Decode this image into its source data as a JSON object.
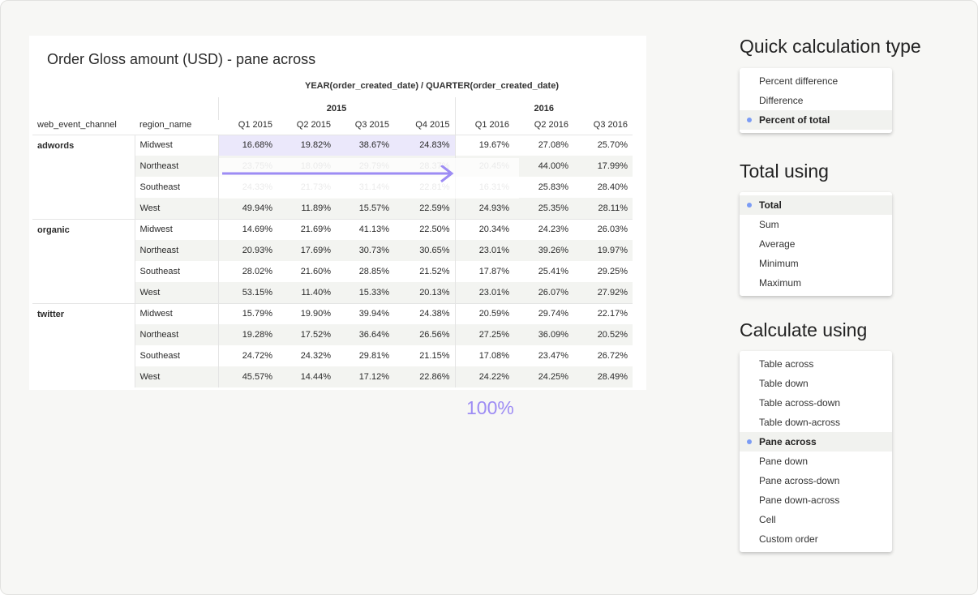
{
  "chart": {
    "title": "Order Gloss amount (USD) - pane across",
    "column_axis": "YEAR(order_created_date) / QUARTER(order_created_date)",
    "years": [
      "2015",
      "2016"
    ],
    "row_headers": [
      "web_event_channel",
      "region_name"
    ],
    "quarters": [
      "Q1 2015",
      "Q2 2015",
      "Q3 2015",
      "Q4 2015",
      "Q1 2016",
      "Q2 2016",
      "Q3 2016"
    ],
    "groups": [
      {
        "channel": "adwords",
        "rows": [
          {
            "region": "Midwest",
            "values": [
              "16.68%",
              "19.82%",
              "38.67%",
              "24.83%",
              "19.67%",
              "27.08%",
              "25.70%"
            ]
          },
          {
            "region": "Northeast",
            "values": [
              "23.75%",
              "18.09%",
              "29.79%",
              "28.37%",
              "20.45%",
              "44.00%",
              "17.99%"
            ]
          },
          {
            "region": "Southeast",
            "values": [
              "24.33%",
              "21.73%",
              "31.14%",
              "22.81%",
              "16.31%",
              "25.83%",
              "28.40%"
            ]
          },
          {
            "region": "West",
            "values": [
              "49.94%",
              "11.89%",
              "15.57%",
              "22.59%",
              "24.93%",
              "25.35%",
              "28.11%"
            ]
          }
        ]
      },
      {
        "channel": "organic",
        "rows": [
          {
            "region": "Midwest",
            "values": [
              "14.69%",
              "21.69%",
              "41.13%",
              "22.50%",
              "20.34%",
              "24.23%",
              "26.03%"
            ]
          },
          {
            "region": "Northeast",
            "values": [
              "20.93%",
              "17.69%",
              "30.73%",
              "30.65%",
              "23.01%",
              "39.26%",
              "19.97%"
            ]
          },
          {
            "region": "Southeast",
            "values": [
              "28.02%",
              "21.60%",
              "28.85%",
              "21.52%",
              "17.87%",
              "25.41%",
              "29.25%"
            ]
          },
          {
            "region": "West",
            "values": [
              "53.15%",
              "11.40%",
              "15.33%",
              "20.13%",
              "23.01%",
              "26.07%",
              "27.92%"
            ]
          }
        ]
      },
      {
        "channel": "twitter",
        "rows": [
          {
            "region": "Midwest",
            "values": [
              "15.79%",
              "19.90%",
              "39.94%",
              "24.38%",
              "20.59%",
              "29.74%",
              "22.17%"
            ]
          },
          {
            "region": "Northeast",
            "values": [
              "19.28%",
              "17.52%",
              "36.64%",
              "26.56%",
              "27.25%",
              "36.09%",
              "20.52%"
            ]
          },
          {
            "region": "Southeast",
            "values": [
              "24.72%",
              "24.32%",
              "29.81%",
              "21.15%",
              "17.08%",
              "23.47%",
              "26.72%"
            ]
          },
          {
            "region": "West",
            "values": [
              "45.57%",
              "14.44%",
              "17.12%",
              "22.86%",
              "24.22%",
              "24.25%",
              "28.49%"
            ]
          }
        ]
      }
    ],
    "annotation": "100%",
    "highlight_color": "#ebe8fb",
    "accent_color": "#9d8cf4"
  },
  "panels": [
    {
      "title": "Quick calculation type",
      "items": [
        "Percent difference",
        "Difference",
        "Percent of total"
      ],
      "selected": 2
    },
    {
      "title": "Total using",
      "items": [
        "Total",
        "Sum",
        "Average",
        "Minimum",
        "Maximum"
      ],
      "selected": 0
    },
    {
      "title": "Calculate using",
      "items": [
        "Table across",
        "Table down",
        "Table across-down",
        "Table down-across",
        "Pane across",
        "Pane down",
        "Pane across-down",
        "Pane down-across",
        "Cell",
        "Custom order"
      ],
      "selected": 4
    }
  ]
}
